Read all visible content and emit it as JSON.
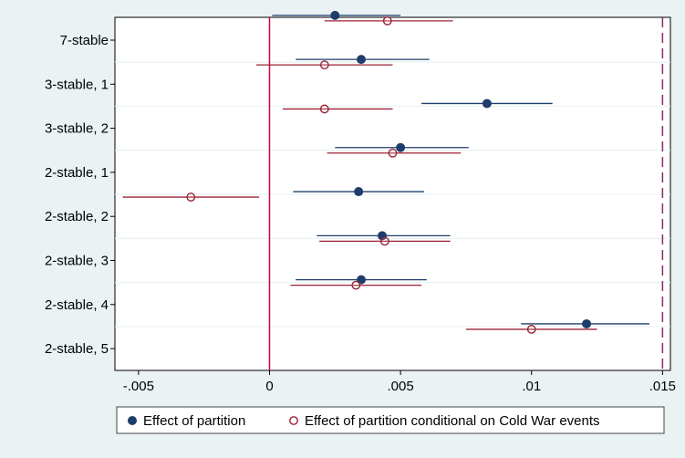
{
  "chart_data": {
    "type": "scatter",
    "subtype": "coefficient-plot-with-confidence-intervals",
    "title": "",
    "xlabel": "",
    "ylabel": "",
    "xlim": [
      -0.0059,
      0.0153
    ],
    "x_ticks": [
      -0.005,
      0,
      0.005,
      0.01,
      0.015
    ],
    "x_tick_labels": [
      "-.005",
      "0",
      ".005",
      ".01",
      ".015"
    ],
    "categories": [
      "7-stable",
      "3-stable, 1",
      "3-stable, 2",
      "2-stable, 1",
      "2-stable, 2",
      "2-stable, 3",
      "2-stable, 4",
      "2-stable, 5"
    ],
    "reference_lines": [
      {
        "x": 0,
        "style": "solid",
        "color": "#d6004c"
      },
      {
        "x": 0.015,
        "style": "dashed",
        "color": "#8a2a6e"
      }
    ],
    "grid": "horizontal",
    "legend_position": "bottom",
    "series": [
      {
        "name": "Effect of partition",
        "marker": "filled-circle",
        "color": "#1f3d6a",
        "estimates": [
          0.0025,
          0.0035,
          0.0083,
          0.005,
          0.0034,
          0.0043,
          0.0035,
          0.0121
        ],
        "ci_low": [
          0.0001,
          0.001,
          0.0058,
          0.0025,
          0.0009,
          0.0018,
          0.001,
          0.0096
        ],
        "ci_high": [
          0.005,
          0.0061,
          0.0108,
          0.0076,
          0.0059,
          0.0069,
          0.006,
          0.0145
        ]
      },
      {
        "name": "Effect of partition conditional on Cold War events",
        "marker": "hollow-circle",
        "color": "#9b2335",
        "estimates": [
          0.0045,
          0.0021,
          0.0021,
          0.0047,
          -0.003,
          0.0044,
          0.0033,
          0.01
        ],
        "ci_low": [
          0.0021,
          -0.0005,
          0.0005,
          0.0022,
          -0.0056,
          0.0019,
          0.0008,
          0.0075
        ],
        "ci_high": [
          0.007,
          0.0047,
          0.0047,
          0.0073,
          -0.0004,
          0.0069,
          0.0058,
          0.0125
        ]
      }
    ]
  }
}
